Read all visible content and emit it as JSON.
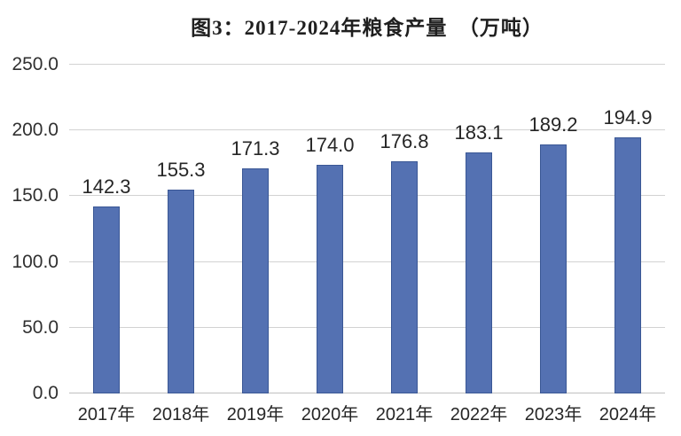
{
  "figure": {
    "title": "图3：2017-2024年粮食产量　（万吨）"
  },
  "chart_data": {
    "type": "bar",
    "title": "图3：2017-2024年粮食产量　（万吨）",
    "categories": [
      "2017年",
      "2018年",
      "2019年",
      "2020年",
      "2021年",
      "2022年",
      "2023年",
      "2024年"
    ],
    "values": [
      142.3,
      155.3,
      171.3,
      174.0,
      176.8,
      183.1,
      189.2,
      194.9
    ],
    "value_labels": [
      "142.3",
      "155.3",
      "171.3",
      "174.0",
      "176.8",
      "183.1",
      "189.2",
      "194.9"
    ],
    "xlabel": "",
    "ylabel": "",
    "ylim": [
      0,
      250
    ],
    "ytick_interval": 50,
    "ytick_labels": [
      "0.0",
      "50.0",
      "100.0",
      "150.0",
      "200.0",
      "250.0"
    ],
    "grid": true,
    "legend": "none",
    "colors": {
      "bar_fill": "#5471B2",
      "bar_border": "#3A5795",
      "gridline": "#D2D2D2",
      "axis_line": "#BFBFBF",
      "label_text": "#262626"
    }
  }
}
